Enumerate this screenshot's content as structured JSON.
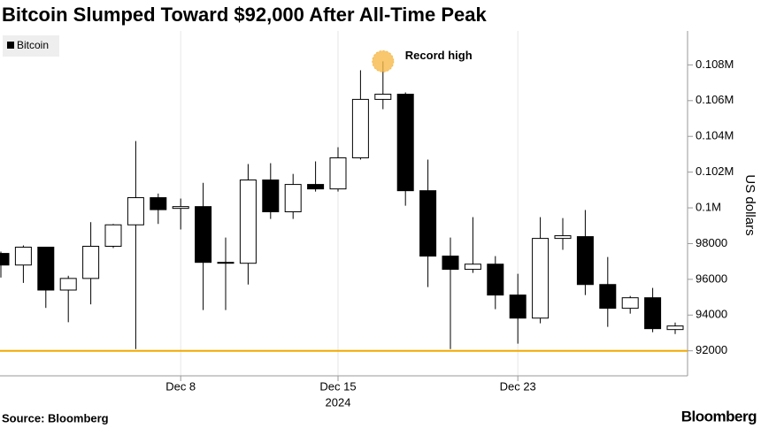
{
  "chart_data": {
    "type": "candlestick",
    "title": "Bitcoin Slumped Toward $92,000 After All-Time Peak",
    "source": "Source: Bloomberg",
    "logo": "Bloomberg",
    "y_label": "US dollars",
    "categories": [
      null,
      null,
      null,
      null,
      null,
      null,
      null,
      null,
      "Dec 8",
      null,
      null,
      null,
      null,
      null,
      null,
      "Dec 15",
      null,
      null,
      null,
      null,
      null,
      null,
      null,
      "Dec 23",
      null,
      null,
      null,
      null,
      null,
      null,
      null
    ],
    "x_sublabel": "2024",
    "series": [
      {
        "name": "Bitcoin",
        "open": [
          97450,
          96800,
          97800,
          95400,
          96050,
          97850,
          99050,
          100570,
          99970,
          100070,
          96950,
          96900,
          101560,
          99780,
          101310,
          101060,
          102800,
          106070,
          106360,
          100960,
          97300,
          96560,
          96850,
          95120,
          93830,
          98290,
          98390,
          95710,
          94380,
          94970,
          93190
        ],
        "high": [
          97550,
          97900,
          97800,
          96200,
          99200,
          99100,
          103740,
          100800,
          100520,
          101400,
          98340,
          102450,
          102500,
          101900,
          102600,
          103390,
          107700,
          108200,
          106460,
          102700,
          98340,
          99480,
          97300,
          96310,
          99480,
          99430,
          99880,
          97250,
          95070,
          95520,
          93580
        ],
        "low": [
          96100,
          95800,
          94400,
          93600,
          94600,
          97750,
          92100,
          99100,
          98790,
          94280,
          94280,
          95710,
          99380,
          99380,
          100910,
          100910,
          102700,
          105520,
          100120,
          95570,
          92100,
          96360,
          94330,
          92400,
          93540,
          97650,
          95120,
          93340,
          94080,
          93040,
          92940
        ],
        "close": [
          96800,
          97800,
          95400,
          96050,
          97850,
          99050,
          100570,
          99900,
          100070,
          96950,
          96900,
          101560,
          99780,
          101310,
          101060,
          102800,
          106070,
          106360,
          100960,
          97300,
          96560,
          96850,
          95120,
          93830,
          98290,
          98440,
          95710,
          94380,
          94970,
          93240,
          93390
        ]
      }
    ],
    "up_color": "#ffffff",
    "down_color": "#000000",
    "reference_line": {
      "value": 92000,
      "color": "#f2a900"
    },
    "annotation": {
      "text": "Record high",
      "color": "#f6b94a"
    },
    "ylim": [
      90600,
      109900
    ],
    "yticks": [
      92000,
      94000,
      96000,
      98000,
      {
        "value": 100000,
        "label": "0.1M"
      },
      {
        "value": 102000,
        "label": "0.102M"
      },
      {
        "value": 104000,
        "label": "0.104M"
      },
      {
        "value": 106000,
        "label": "0.106M"
      },
      {
        "value": 108000,
        "label": "0.108M"
      }
    ],
    "xgrid": true,
    "legend": "top-left"
  }
}
